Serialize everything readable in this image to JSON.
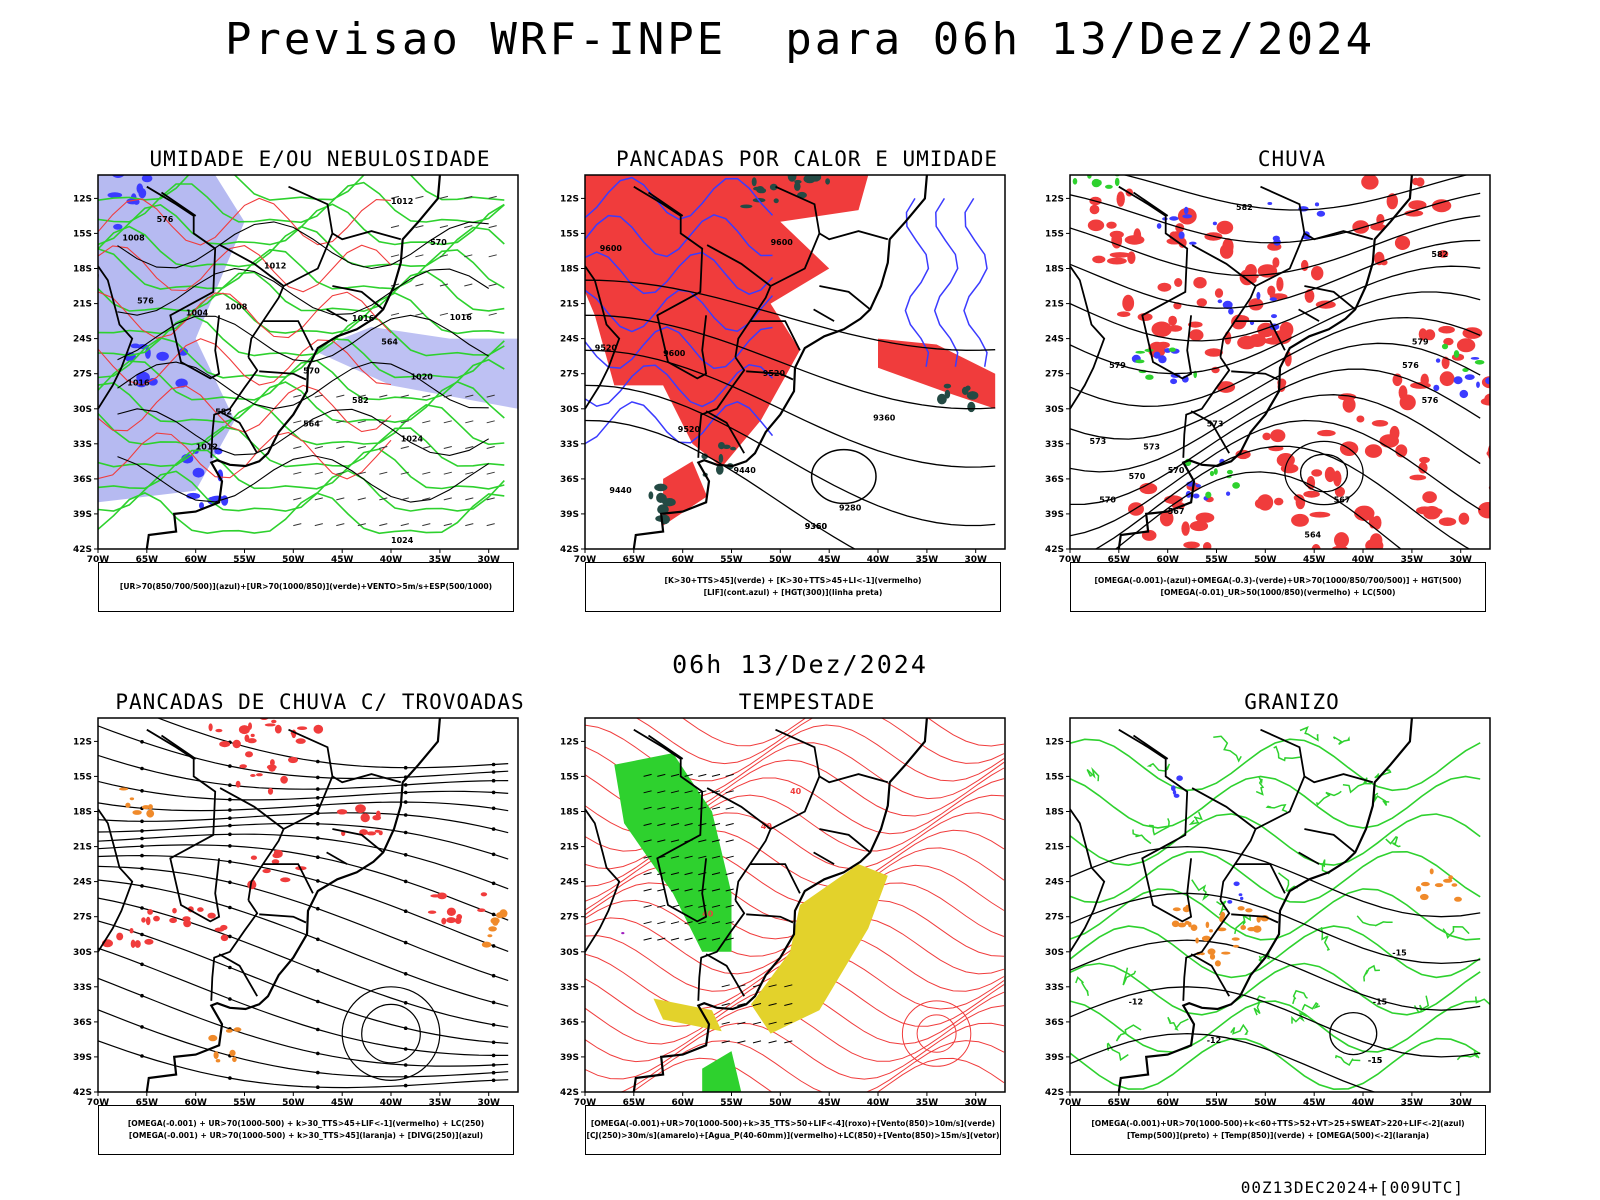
{
  "header": {
    "title": "Previsao WRF-INPE  para 06h 13/Dez/2024",
    "mid_title": "06h 13/Dez/2024",
    "footer": "00Z13DEC2024+[009UTC]"
  },
  "axes": {
    "lat_labels": [
      "12S",
      "15S",
      "18S",
      "21S",
      "24S",
      "27S",
      "30S",
      "33S",
      "36S",
      "39S",
      "42S"
    ],
    "lon_labels": [
      "70W",
      "65W",
      "60W",
      "55W",
      "50W",
      "45W",
      "40W",
      "35W",
      "30W"
    ]
  },
  "colors": {
    "blue": "#3b3bff",
    "lavender": "#aeb2f0",
    "green": "#2ed12e",
    "red": "#f03c3c",
    "dark_green": "#244a44",
    "orange": "#f08a2a",
    "yellow": "#e3d22b",
    "purple": "#a020c0"
  },
  "panels": [
    {
      "title": "UMIDADE E/OU NEBULOSIDADE",
      "legend": [
        "[UR>70(850/700/500)](azul)+[UR>70(1000/850)](verde)+VENTO>5m/s+ESP(500/1000)"
      ],
      "contour_labels": [
        "1012",
        "1008",
        "1016",
        "1004",
        "1008",
        "1012",
        "1016",
        "1020",
        "1024",
        "1016",
        "1012",
        "1024",
        "576",
        "576",
        "570",
        "564",
        "564",
        "582",
        "570",
        "582"
      ]
    },
    {
      "title": "PANCADAS POR CALOR E UMIDADE",
      "legend": [
        "[K>30+TTS>45](verde) + [K>30+TTS>45+LI<-1](vermelho)",
        "[LIF](cont.azul) + [HGT(300)](linha preta)"
      ],
      "contour_labels": [
        "9600",
        "9600",
        "9520",
        "9600",
        "9520",
        "9520",
        "9440",
        "9360",
        "9440",
        "9360",
        "9280",
        "9360"
      ]
    },
    {
      "title": "CHUVA",
      "legend": [
        "[OMEGA(-0.001)-(azul)+OMEGA(-0.3)-(verde)+UR>70(1000/850/700/500)] + HGT(500)",
        "[OMEGA(-0.01)_UR>50(1000/850)(vermelho) + LC(500)"
      ],
      "contour_labels": [
        "582",
        "582",
        "579",
        "576",
        "576",
        "573",
        "570",
        "573",
        "570",
        "567",
        "564",
        "567",
        "570",
        "573",
        "579"
      ]
    },
    {
      "title": "PANCADAS DE CHUVA C/ TROVOADAS",
      "legend": [
        "[OMEGA(-0.001) + UR>70(1000-500) + k>30_TTS>45+LIF<-1](vermelho) + LC(250)",
        "[OMEGA(-0.001) + UR>70(1000-500) + k>30_TTS>45](laranja) + [DIVG(250)](azul)"
      ],
      "contour_labels": []
    },
    {
      "title": "TEMPESTADE",
      "legend": [
        "[OMEGA(-0.001)+UR>70(1000-500)+k>35_TTS>50+LIF<-4](roxo)+[Vento(850)>10m/s](verde)",
        "[CJ(250)>30m/s](amarelo)+[Agua_P(40-60mm)](vermelho)+LC(850)+[Vento(850)>15m/s](vetor)"
      ],
      "contour_labels": [
        "40",
        "40",
        "40"
      ]
    },
    {
      "title": "GRANIZO",
      "legend": [
        "[OMEGA(-0.001)+UR>70(1000-500)+k<60+TTS>52+VT>25+SWEAT>220+LIF<-2](azul)",
        "[Temp(500)](preto) + [Temp(850)](verde) + [OMEGA(500)<-2](laranja)"
      ],
      "contour_labels": [
        "-15",
        "-15",
        "-12",
        "-12",
        "-15",
        "-15"
      ]
    }
  ]
}
